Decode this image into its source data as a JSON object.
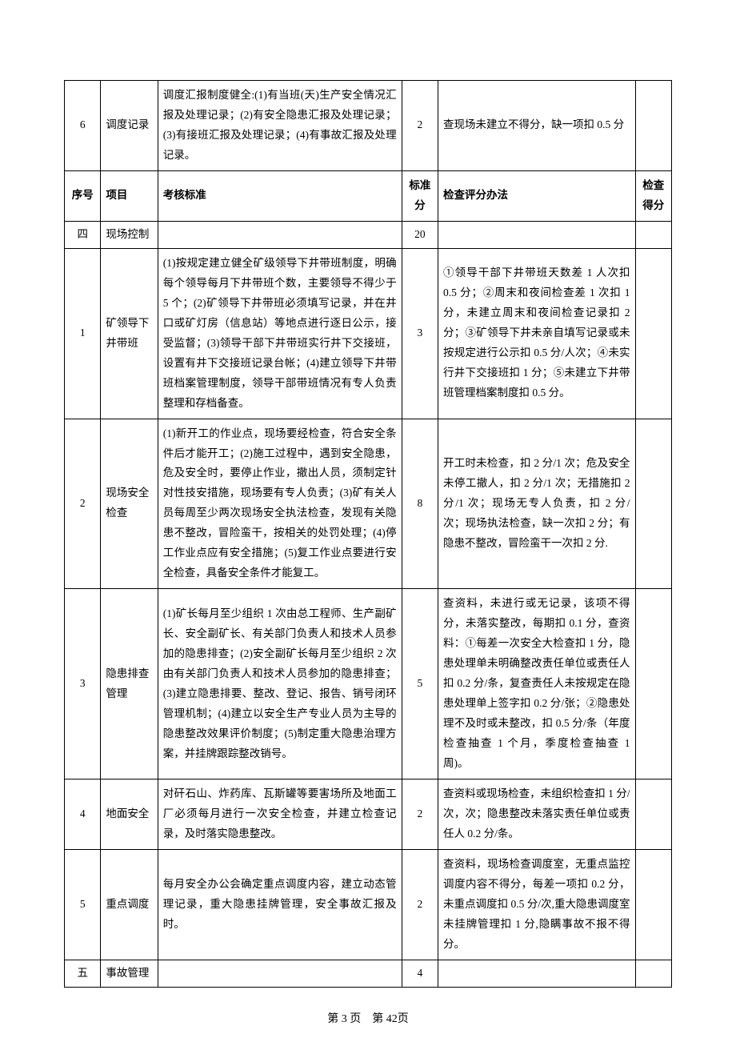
{
  "header": {
    "seq": "序号",
    "item": "项目",
    "standard": "考核标准",
    "score": "标准分",
    "method": "检查评分办法",
    "result": "检查得分"
  },
  "rows": {
    "r6": {
      "seq": "6",
      "item": "调度记录",
      "standard": "调度汇报制度健全:(1)有当班(天)生产安全情况汇报及处理记录；(2)有安全隐患汇报及处理记录；(3)有接班汇报及处理记录；(4)有事故汇报及处理记录。",
      "score": "2",
      "method": "查现场未建立不得分，缺一项扣 0.5 分"
    },
    "s4": {
      "seq": "四",
      "item": "现场控制",
      "score": "20"
    },
    "r4_1": {
      "seq": "1",
      "item": "矿领导下井带班",
      "standard": "(1)按规定建立健全矿级领导下井带班制度，明确每个领导每月下井带班个数，主要领导不得少于 5 个；(2)矿领导下井带班必须填写记录，并在井口或矿灯房（信息站）等地点进行逐日公示，接受监督；(3)领导干部下井带班实行井下交接班，设置有井下交接班记录台帐；(4)建立领导下井带班档案管理制度，领导干部带班情况有专人负责整理和存档备查。",
      "score": "3",
      "method": "①领导干部下井带班天数差 1 人次扣 0.5 分；②周末和夜间检查差 1 次扣 1 分，未建立周末和夜间检查记录扣 2 分；③矿领导下井未亲自填写记录或未按规定进行公示扣 0.5 分/人次；④未实行井下交接班扣 1 分；⑤未建立下井带班管理档案制度扣 0.5 分。"
    },
    "r4_2": {
      "seq": "2",
      "item": "现场安全检查",
      "standard": "(1)新开工的作业点，现场要经检查，符合安全条件后才能开工；(2)施工过程中，遇到安全隐患，危及安全时，要停止作业，撤出人员，须制定针对性技安措施，现场要有专人负责；(3)矿有关人员每周至少两次现场安全执法检查，发现有关隐患不整改，冒险蛮干，按相关的处罚处理；(4)停工作业点应有安全措施；(5)复工作业点要进行安全检查，具备安全条件才能复工。",
      "score": "8",
      "method": "开工时未检查，扣 2 分/1 次；危及安全未停工撤人，扣 2 分/1 次；无措施扣 2 分/1 次；现场无专人负责，扣 2 分/次；现场执法检查，缺一次扣 2 分；有隐患不整改，冒险蛮干一次扣 2 分."
    },
    "r4_3": {
      "seq": "3",
      "item": "隐患排查管理",
      "standard": "(1)矿长每月至少组织 1 次由总工程师、生产副矿长、安全副矿长、有关部门负责人和技术人员参加的隐患排查；(2)安全副矿长每月至少组织 2 次由有关部门负责人和技术人员参加的隐患排查；(3)建立隐患排要、整改、登记、报告、销号闭环管理机制；(4)建立以安全生产专业人员为主导的隐患整改效果评价制度；(5)制定重大隐患治理方案，并挂牌跟踪整改销号。",
      "score": "5",
      "method": "查资料，未进行或无记录，该项不得分，未落实整改，每期扣 0.1 分，查资料：①每差一次安全大检查扣 1 分，隐患处理单未明确整改责任单位或责任人扣 0.2 分/条，复查责任人未按规定在隐患处理单上签字扣 0.2 分/张；②隐患处理不及时或未整改，扣 0.5 分/条（年度检查抽查 1 个月，季度检查抽查 1 周)。"
    },
    "r4_4": {
      "seq": "4",
      "item": "地面安全",
      "standard": "对矸石山、炸药库、瓦斯罐等要害场所及地面工厂必须每月进行一次安全检查，并建立检查记录，及时落实隐患整改。",
      "score": "2",
      "method": "查资料或现场检查，未组织检查扣 1 分/次，次；隐患整改未落实责任单位或责任人 0.2 分/条。"
    },
    "r4_5": {
      "seq": "5",
      "item": "重点调度",
      "standard": "每月安全办公会确定重点调度内容，建立动态管理记录，重大隐患挂牌管理，安全事故汇报及时。",
      "score": "2",
      "method": "查资料，现场检查调度室，无重点监控调度内容不得分，每差一项扣 0.2 分，未重点调度扣 0.5 分/次,重大隐患调度室未挂牌管理扣 1 分,隐瞒事故不报不得分。"
    },
    "s5": {
      "seq": "五",
      "item": "事故管理",
      "score": "4"
    }
  },
  "footer": {
    "text": "第 3 页　第 42页"
  }
}
